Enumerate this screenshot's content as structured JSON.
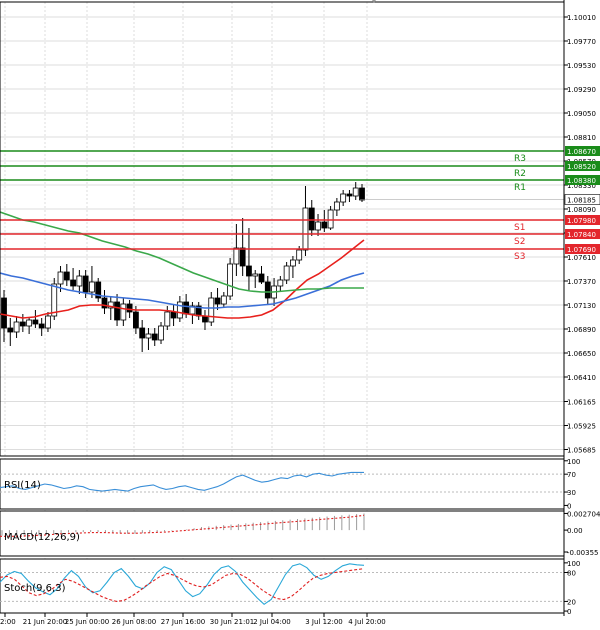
{
  "colors": {
    "bull": "#1a9e2c",
    "bear": "#e3262c",
    "support": "#e3262c",
    "resistance": "#1a8c1a",
    "ma_fast": "#e8201c",
    "ma_mid": "#3a6fd8",
    "ma_slow": "#3aa84a",
    "rsi": "#3a8fd8",
    "macd_hist": "#9a9a9a",
    "macd_signal": "#e02020",
    "stoch_main": "#2aa8d8",
    "stoch_signal": "#e02020",
    "price_box": "#ffffff",
    "grid": "#dddddd"
  },
  "chart_data": [
    {
      "type": "candlestick",
      "title": "",
      "ylim": [
        1.0562,
        1.1016
      ],
      "y_ticks": [
        "1.10010",
        "1.09770",
        "1.09530",
        "1.09290",
        "1.09050",
        "1.08810",
        "1.08570",
        "1.08330",
        "1.08090",
        "1.07850",
        "1.07610",
        "1.07370",
        "1.07130",
        "1.06890",
        "1.06650",
        "1.06410",
        "1.06165",
        "1.05925",
        "1.05685"
      ],
      "x_labels": [
        "2:00",
        "21 Jun 20:00",
        "25 Jun 00:00",
        "26 Jun 08:00",
        "27 Jun 16:00",
        "30 Jun 21:01",
        "2 Jul 04:00",
        "3 Jul 12:00",
        "4 Jul 20:00"
      ],
      "current_price": "1.08185",
      "levels": [
        {
          "name": "R3",
          "value": 1.0867,
          "label": "1.08670",
          "kind": "resistance"
        },
        {
          "name": "R2",
          "value": 1.0852,
          "label": "1.08520",
          "kind": "resistance"
        },
        {
          "name": "R1",
          "value": 1.0838,
          "label": "1.08380",
          "kind": "resistance"
        },
        {
          "name": "S1",
          "value": 1.0798,
          "label": "1.07980",
          "kind": "support"
        },
        {
          "name": "S2",
          "value": 1.0784,
          "label": "1.07840",
          "kind": "support"
        },
        {
          "name": "S3",
          "value": 1.0769,
          "label": "1.07690",
          "kind": "support"
        }
      ],
      "candles": [
        [
          1.072,
          1.0728,
          1.0676,
          1.069
        ],
        [
          1.069,
          1.07,
          1.0672,
          1.0686
        ],
        [
          1.0686,
          1.0702,
          1.068,
          1.0696
        ],
        [
          1.0696,
          1.0704,
          1.0686,
          1.0692
        ],
        [
          1.0692,
          1.07,
          1.0684,
          1.0698
        ],
        [
          1.0698,
          1.0708,
          1.069,
          1.0694
        ],
        [
          1.0694,
          1.07,
          1.0682,
          1.069
        ],
        [
          1.069,
          1.0706,
          1.0686,
          1.0702
        ],
        [
          1.0702,
          1.074,
          1.0698,
          1.0734
        ],
        [
          1.0734,
          1.0752,
          1.0726,
          1.0746
        ],
        [
          1.0746,
          1.0754,
          1.0732,
          1.0738
        ],
        [
          1.0738,
          1.075,
          1.0728,
          1.0732
        ],
        [
          1.0732,
          1.0748,
          1.0724,
          1.0742
        ],
        [
          1.0742,
          1.0748,
          1.072,
          1.0726
        ],
        [
          1.0726,
          1.0752,
          1.072,
          1.0736
        ],
        [
          1.0736,
          1.074,
          1.0716,
          1.072
        ],
        [
          1.072,
          1.0728,
          1.0704,
          1.071
        ],
        [
          1.071,
          1.0722,
          1.0698,
          1.0716
        ],
        [
          1.0716,
          1.0724,
          1.0692,
          1.0698
        ],
        [
          1.0698,
          1.072,
          1.0692,
          1.0714
        ],
        [
          1.0714,
          1.0718,
          1.07,
          1.0706
        ],
        [
          1.0706,
          1.0712,
          1.0684,
          1.069
        ],
        [
          1.069,
          1.0698,
          1.0666,
          1.068
        ],
        [
          1.068,
          1.069,
          1.0668,
          1.0684
        ],
        [
          1.0684,
          1.069,
          1.0672,
          1.0678
        ],
        [
          1.0678,
          1.0696,
          1.0674,
          1.0692
        ],
        [
          1.0692,
          1.0712,
          1.0688,
          1.0706
        ],
        [
          1.0706,
          1.0714,
          1.0692,
          1.07
        ],
        [
          1.07,
          1.0722,
          1.0696,
          1.0716
        ],
        [
          1.0716,
          1.0724,
          1.07,
          1.0704
        ],
        [
          1.0704,
          1.0716,
          1.0694,
          1.0712
        ],
        [
          1.0712,
          1.0716,
          1.0698,
          1.0702
        ],
        [
          1.0702,
          1.0708,
          1.0688,
          1.0696
        ],
        [
          1.0696,
          1.0726,
          1.0692,
          1.072
        ],
        [
          1.072,
          1.073,
          1.0708,
          1.0714
        ],
        [
          1.0714,
          1.0726,
          1.071,
          1.0722
        ],
        [
          1.0722,
          1.076,
          1.0718,
          1.0754
        ],
        [
          1.0754,
          1.0794,
          1.0742,
          1.077
        ],
        [
          1.077,
          1.08,
          1.0742,
          1.0752
        ],
        [
          1.0752,
          1.079,
          1.0728,
          1.0742
        ],
        [
          1.0742,
          1.0748,
          1.073,
          1.0744
        ],
        [
          1.0744,
          1.0752,
          1.0734,
          1.0736
        ],
        [
          1.0736,
          1.0742,
          1.0714,
          1.072
        ],
        [
          1.072,
          1.074,
          1.0712,
          1.0732
        ],
        [
          1.0732,
          1.0742,
          1.0726,
          1.0738
        ],
        [
          1.0738,
          1.0756,
          1.0734,
          1.0752
        ],
        [
          1.0752,
          1.0762,
          1.074,
          1.0758
        ],
        [
          1.0758,
          1.0772,
          1.0754,
          1.0768
        ],
        [
          1.0768,
          1.0832,
          1.0762,
          1.081
        ],
        [
          1.081,
          1.0818,
          1.0782,
          1.0788
        ],
        [
          1.0788,
          1.0804,
          1.0782,
          1.0796
        ],
        [
          1.0796,
          1.0808,
          1.0786,
          1.079
        ],
        [
          1.079,
          1.0812,
          1.0788,
          1.0808
        ],
        [
          1.0808,
          1.082,
          1.0802,
          1.0816
        ],
        [
          1.0816,
          1.0828,
          1.0812,
          1.0824
        ],
        [
          1.0824,
          1.0828,
          1.0816,
          1.0822
        ],
        [
          1.0822,
          1.0836,
          1.0818,
          1.083
        ],
        [
          1.083,
          1.0834,
          1.0816,
          1.0818
        ]
      ],
      "series": [
        {
          "name": "fast MA",
          "values": [
            1.0704,
            1.0702,
            1.07,
            1.0701,
            1.0704,
            1.0706,
            1.0708,
            1.0712,
            1.0713,
            1.0713,
            1.0711,
            1.0709,
            1.0708,
            1.0708,
            1.0708,
            1.0707,
            1.0705,
            1.0703,
            1.0702,
            1.0701,
            1.07,
            1.07,
            1.0701,
            1.0703,
            1.0708,
            1.0717,
            1.0728,
            1.0738,
            1.0744,
            1.0752,
            1.076,
            1.0769,
            1.0778
          ]
        },
        {
          "name": "mid MA",
          "values": [
            1.0745,
            1.0742,
            1.074,
            1.0737,
            1.0734,
            1.0731,
            1.0728,
            1.0726,
            1.0724,
            1.0722,
            1.0721,
            1.072,
            1.0719,
            1.0718,
            1.0716,
            1.0714,
            1.0712,
            1.0711,
            1.071,
            1.071,
            1.0711,
            1.0711,
            1.0712,
            1.0713,
            1.0714,
            1.0717,
            1.072,
            1.0724,
            1.0728,
            1.0732,
            1.0738,
            1.0742,
            1.0745
          ]
        },
        {
          "name": "slow MA",
          "values": [
            1.0806,
            1.0802,
            1.0798,
            1.0796,
            1.0793,
            1.079,
            1.0787,
            1.0785,
            1.0781,
            1.0777,
            1.0774,
            1.0771,
            1.0767,
            1.0764,
            1.076,
            1.0755,
            1.075,
            1.0745,
            1.0741,
            1.0737,
            1.0733,
            1.0729,
            1.0727,
            1.0726,
            1.0726,
            1.0727,
            1.0728,
            1.0729,
            1.0729,
            1.073,
            1.073,
            1.073,
            1.073
          ]
        }
      ]
    },
    {
      "type": "line",
      "title": "RSI(14)",
      "ylim": [
        0,
        100
      ],
      "y_ticks": [
        "100",
        "70",
        "30",
        "0"
      ],
      "series": [
        {
          "name": "RSI",
          "values": [
            40,
            42,
            44,
            38,
            36,
            40,
            44,
            48,
            46,
            42,
            38,
            40,
            44,
            42,
            36,
            34,
            32,
            34,
            36,
            34,
            32,
            38,
            42,
            44,
            46,
            40,
            36,
            38,
            42,
            44,
            40,
            36,
            34,
            38,
            42,
            48,
            56,
            64,
            68,
            62,
            56,
            52,
            54,
            58,
            62,
            60,
            66,
            68,
            64,
            70,
            72,
            68,
            66,
            70,
            72,
            74,
            74,
            74
          ]
        }
      ]
    },
    {
      "type": "bar",
      "title": "MACD(12,26,9)",
      "y_ticks": [
        "0.002704",
        "0.00",
        "-0.00355"
      ],
      "ylim": [
        -0.0042,
        0.0031
      ],
      "series": [
        {
          "name": "histogram",
          "values": [
            -0.0009,
            -0.001,
            -0.0011,
            -0.0011,
            -0.001,
            -0.0009,
            -0.0008,
            -0.0007,
            -0.0005,
            -0.0004,
            -0.0003,
            -0.0003,
            -0.0003,
            -0.0003,
            -0.0003,
            -0.0004,
            -0.0005,
            -0.0006,
            -0.0006,
            -0.0005,
            -0.0004,
            -0.0003,
            -0.0002,
            -0.0001,
            0.0,
            0.0001,
            0.0003,
            0.0005,
            0.0006,
            0.0007,
            0.0008,
            0.0009,
            0.001,
            0.0011,
            0.0012,
            0.0013,
            0.0014,
            0.0015,
            0.0016,
            0.0017,
            0.0018,
            0.0019,
            0.002,
            0.0021,
            0.0022,
            0.0023,
            0.0024,
            0.0025,
            0.0026,
            0.0027
          ]
        },
        {
          "name": "signal",
          "values": [
            -0.001,
            -0.001,
            -0.0009,
            -0.0008,
            -0.0006,
            -0.0005,
            -0.0004,
            -0.0004,
            -0.0005,
            -0.0005,
            -0.0004,
            -0.0003,
            -0.0001,
            0.0001,
            0.0003,
            0.0005,
            0.0007,
            0.0009,
            0.0011,
            0.0013,
            0.0015,
            0.0017,
            0.0019,
            0.0021,
            0.0024
          ]
        }
      ]
    },
    {
      "type": "line",
      "title": "Stoch(9,6,3)",
      "ylim": [
        0,
        100
      ],
      "y_ticks": [
        "100",
        "80",
        "20",
        "0"
      ],
      "series": [
        {
          "name": "main",
          "values": [
            60,
            75,
            82,
            78,
            62,
            48,
            40,
            34,
            46,
            68,
            84,
            72,
            50,
            38,
            42,
            60,
            80,
            88,
            72,
            52,
            46,
            58,
            80,
            92,
            86,
            64,
            42,
            30,
            36,
            54,
            76,
            90,
            94,
            82,
            60,
            44,
            28,
            14,
            24,
            50,
            76,
            94,
            98,
            90,
            74,
            66,
            72,
            84,
            94,
            98,
            96,
            95
          ]
        },
        {
          "name": "signal",
          "values": [
            70,
            72,
            66,
            52,
            38,
            32,
            36,
            44,
            56,
            66,
            62,
            54,
            46,
            38,
            30,
            24,
            20,
            22,
            30,
            40,
            52,
            62,
            72,
            78,
            74,
            66,
            58,
            52,
            50,
            54,
            64,
            74,
            78,
            76,
            68,
            56,
            44,
            34,
            26,
            24,
            30,
            42,
            56,
            68,
            74,
            78,
            80,
            82,
            84,
            86,
            88
          ]
        }
      ]
    }
  ]
}
